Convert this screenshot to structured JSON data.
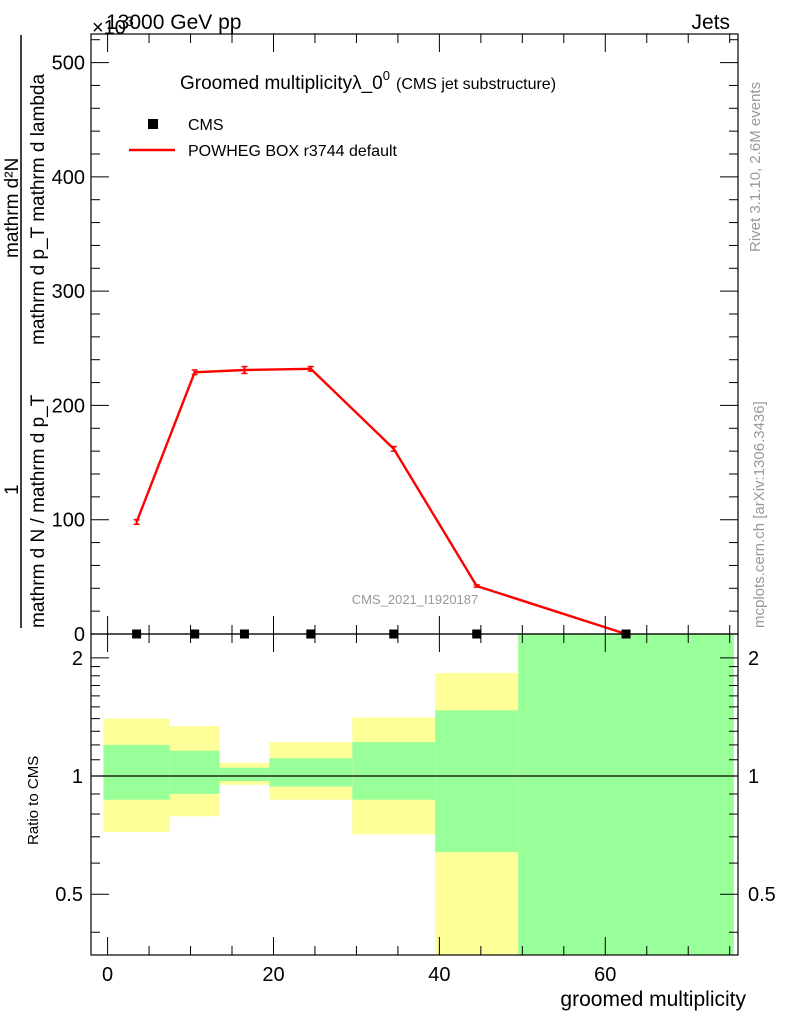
{
  "header": {
    "left": "13000 GeV pp",
    "right": "Jets",
    "exponent": "×10",
    "exponent_power": "3"
  },
  "title": {
    "main": "Groomed multiplicityλ_0",
    "superscript": "0",
    "sub": "(CMS jet substructure)"
  },
  "side_labels": {
    "rivet": "Rivet 3.1.10,  2.6M events",
    "mcplots": "mcplots.cern.ch [arXiv:1306.3436]"
  },
  "watermark": "CMS_2021_I1920187",
  "legend": {
    "data_label": "CMS",
    "mc_label": "POWHEG BOX r3744 default"
  },
  "axes": {
    "ylabel_top_numerator": "mathrm d²N",
    "ylabel_top_numerator_line2": "mathrm d p_T mathrm d lambda",
    "ylabel_top_prefix": "1",
    "ylabel_top_denominator": "mathrm d N / mathrm d p_T",
    "ylabel_ratio": "Ratio to CMS",
    "xlabel": "groomed multiplicity"
  },
  "chart_data": {
    "type": "line",
    "x_range": [
      -2,
      76
    ],
    "top_panel": {
      "ylim": [
        0,
        525
      ],
      "y_ticks": [
        0,
        100,
        200,
        300,
        400,
        500
      ],
      "y_scale_label": "×10³",
      "series": [
        {
          "name": "POWHEG BOX r3744 default",
          "color": "#ff0000",
          "x": [
            3.5,
            10.5,
            16.5,
            24.5,
            34.5,
            44.5,
            62.5
          ],
          "y": [
            98,
            229,
            231,
            232,
            162,
            42,
            0
          ],
          "yerr": [
            2,
            2,
            3,
            2,
            2,
            1,
            0
          ]
        },
        {
          "name": "CMS",
          "color": "#000000",
          "x": [
            3.5,
            10.5,
            16.5,
            24.5,
            34.5,
            44.5,
            62.5
          ],
          "y": [
            0,
            0,
            0,
            0,
            0,
            0,
            0
          ]
        }
      ]
    },
    "ratio_panel": {
      "ylabel": "Ratio to CMS",
      "log_scale": true,
      "ylim": [
        0.35,
        2.3
      ],
      "y_ticks": [
        0.5,
        1,
        2
      ],
      "bins": [
        {
          "lo": -0.5,
          "hi": 7.5,
          "yellow": [
            0.72,
            1.4
          ],
          "green": [
            0.87,
            1.2
          ]
        },
        {
          "lo": 7.5,
          "hi": 13.5,
          "yellow": [
            0.79,
            1.34
          ],
          "green": [
            0.9,
            1.16
          ]
        },
        {
          "lo": 13.5,
          "hi": 19.5,
          "yellow": [
            0.95,
            1.08
          ],
          "green": [
            0.97,
            1.05
          ]
        },
        {
          "lo": 19.5,
          "hi": 29.5,
          "yellow": [
            0.87,
            1.22
          ],
          "green": [
            0.94,
            1.11
          ]
        },
        {
          "lo": 29.5,
          "hi": 39.5,
          "yellow": [
            0.71,
            1.41
          ],
          "green": [
            0.87,
            1.22
          ]
        },
        {
          "lo": 39.5,
          "hi": 49.5,
          "yellow": [
            0.35,
            1.83
          ],
          "green": [
            0.64,
            1.47
          ]
        },
        {
          "lo": 49.5,
          "hi": 75.5,
          "yellow": [
            0.35,
            2.3
          ],
          "green": [
            0.35,
            2.3
          ]
        }
      ],
      "colors": {
        "yellow": "#ffff99",
        "green": "#99ff99"
      }
    },
    "x_ticks": [
      0,
      20,
      40,
      60
    ],
    "xlabel": "groomed multiplicity"
  }
}
